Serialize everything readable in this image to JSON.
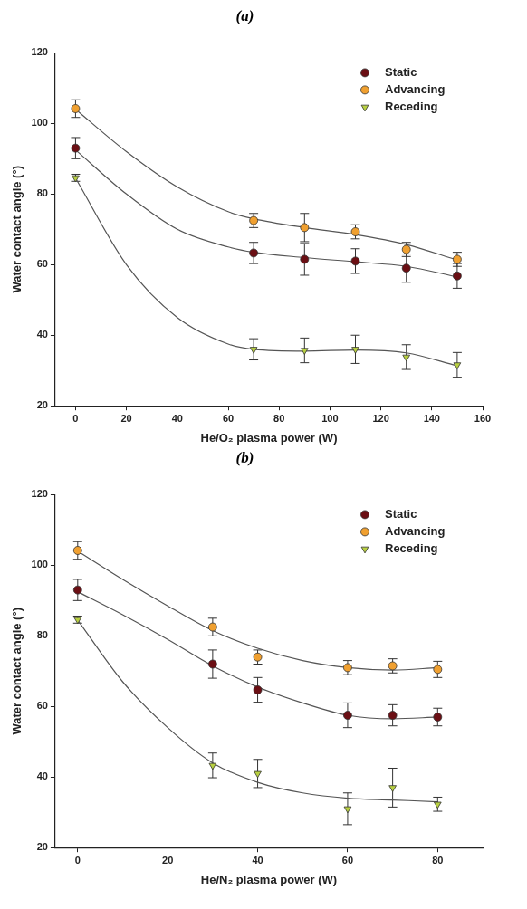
{
  "chart_data": [
    {
      "type": "scatter",
      "title": "(a)",
      "xlabel": "He/O₂ plasma power (W)",
      "ylabel": "Water contact angle (°)",
      "xlim": [
        -8,
        160
      ],
      "xticks": [
        0,
        20,
        40,
        60,
        80,
        100,
        120,
        140,
        160
      ],
      "ylim": [
        20,
        120
      ],
      "yticks": [
        20,
        40,
        60,
        80,
        100,
        120
      ],
      "grid": false,
      "legend": "top right",
      "series": [
        {
          "name": "Static",
          "color": "#6b0f14",
          "marker": "circle",
          "x": [
            0,
            70,
            90,
            110,
            130,
            150
          ],
          "values": [
            93,
            63.3,
            61.5,
            61,
            59,
            56.8
          ],
          "errors": [
            3,
            3,
            4.5,
            3.5,
            4,
            3.5
          ]
        },
        {
          "name": "Advancing",
          "color": "#f0a030",
          "marker": "circle",
          "x": [
            0,
            70,
            90,
            110,
            130,
            150
          ],
          "values": [
            104.2,
            72.5,
            70.5,
            69.3,
            64.3,
            61.5
          ],
          "errors": [
            2.5,
            2,
            4,
            2,
            2,
            2
          ]
        },
        {
          "name": "Receding",
          "color": "#b8d040",
          "marker": "triangle",
          "x": [
            0,
            70,
            90,
            110,
            130,
            150
          ],
          "values": [
            84.6,
            36,
            35.7,
            36,
            33.8,
            31.6
          ],
          "errors": [
            1,
            3,
            3.5,
            4,
            3.5,
            3.5
          ]
        },
        {
          "type": "line",
          "color": "#555555",
          "marker": "none",
          "x": [
            0,
            20,
            40,
            60,
            70,
            90,
            110,
            130,
            150
          ],
          "values": [
            104,
            92,
            82,
            75,
            73,
            70.5,
            68.5,
            65.7,
            61.3
          ]
        },
        {
          "type": "line",
          "color": "#555555",
          "marker": "none",
          "x": [
            0,
            20,
            40,
            60,
            70,
            90,
            110,
            130,
            150
          ],
          "values": [
            92.5,
            80,
            70,
            65,
            63.5,
            62,
            60.8,
            59.5,
            56.5
          ]
        },
        {
          "type": "line",
          "color": "#555555",
          "marker": "none",
          "x": [
            0,
            20,
            40,
            60,
            70,
            90,
            110,
            130,
            150
          ],
          "values": [
            84.5,
            60,
            45,
            37.5,
            36,
            35.5,
            35.8,
            35,
            31.3
          ]
        }
      ]
    },
    {
      "type": "scatter",
      "title": "(b)",
      "xlabel": "He/N₂ plasma power (W)",
      "ylabel": "Water contact angle (°)",
      "xlim": [
        -5,
        90
      ],
      "xticks": [
        0,
        20,
        40,
        60,
        80
      ],
      "ylim": [
        20,
        120
      ],
      "yticks": [
        20,
        40,
        60,
        80,
        100,
        120
      ],
      "grid": false,
      "legend": "top right",
      "series": [
        {
          "name": "Static",
          "color": "#6b0f14",
          "marker": "circle",
          "x": [
            0,
            30,
            40,
            60,
            70,
            80
          ],
          "values": [
            93,
            72,
            64.7,
            57.5,
            57.5,
            57
          ],
          "errors": [
            3,
            4,
            3.5,
            3.5,
            3,
            2.5
          ]
        },
        {
          "name": "Advancing",
          "color": "#f0a030",
          "marker": "circle",
          "x": [
            0,
            30,
            40,
            60,
            70,
            80
          ],
          "values": [
            104.2,
            82.5,
            74,
            71,
            71.5,
            70.5
          ],
          "errors": [
            2.5,
            2.5,
            2,
            2,
            2,
            2.3
          ]
        },
        {
          "name": "Receding",
          "color": "#b8d040",
          "marker": "triangle",
          "x": [
            0,
            30,
            40,
            60,
            70,
            80
          ],
          "values": [
            84.6,
            43.3,
            41,
            31,
            37,
            32.3
          ],
          "errors": [
            1,
            3.5,
            4,
            4.5,
            5.5,
            2
          ]
        },
        {
          "type": "line",
          "color": "#555555",
          "marker": "none",
          "x": [
            0,
            10,
            20,
            30,
            40,
            50,
            60,
            70,
            80
          ],
          "values": [
            104,
            96,
            88.5,
            81.5,
            76.5,
            73,
            71,
            70.3,
            71
          ]
        },
        {
          "type": "line",
          "color": "#555555",
          "marker": "none",
          "x": [
            0,
            10,
            20,
            30,
            40,
            50,
            60,
            70,
            80
          ],
          "values": [
            92.5,
            86,
            79,
            71.5,
            65.5,
            61,
            57.5,
            56.5,
            57
          ]
        },
        {
          "type": "line",
          "color": "#555555",
          "marker": "none",
          "x": [
            0,
            10,
            20,
            30,
            40,
            50,
            60,
            70,
            80
          ],
          "values": [
            84.5,
            67,
            54,
            44,
            38.5,
            35.5,
            34,
            33.5,
            33
          ]
        }
      ]
    }
  ]
}
